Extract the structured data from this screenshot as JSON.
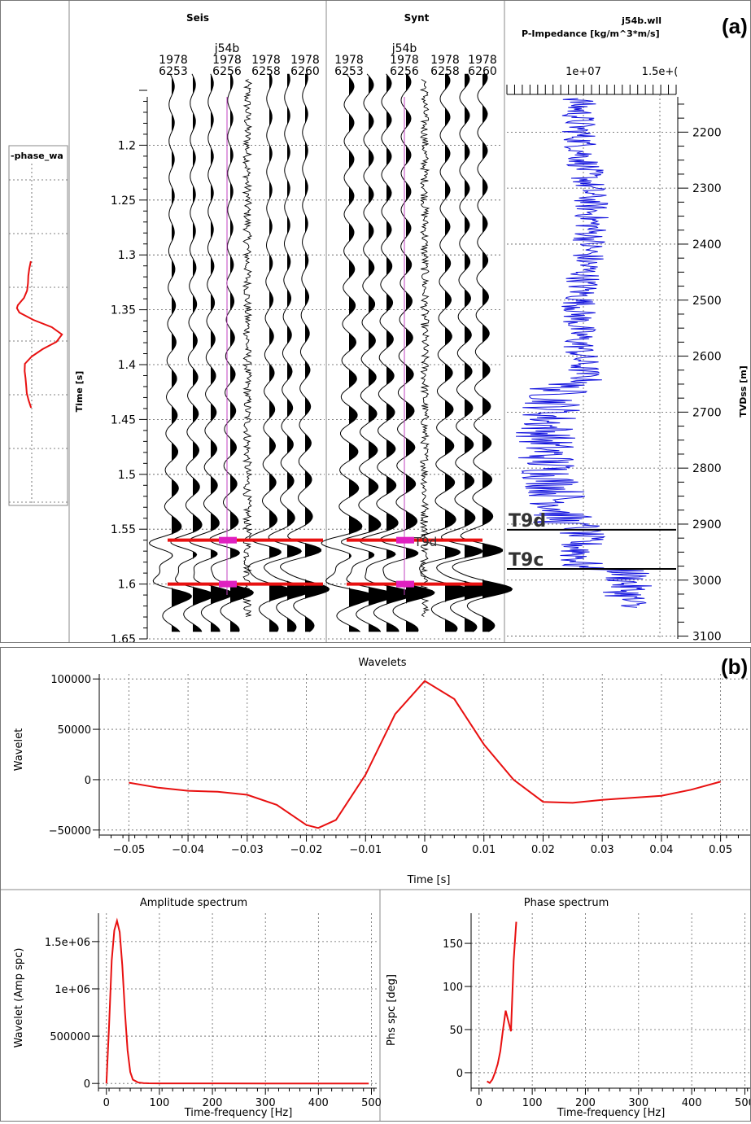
{
  "panel_a": {
    "label": "(a)",
    "wavelet_track_title": "-phase_wa",
    "seis": {
      "title": "Seis",
      "trace_headers": [
        {
          "line1": "1978",
          "line2": "6253"
        },
        {
          "line0": "j54b",
          "line1": "1978",
          "line2": "6256"
        },
        {
          "line1": "1978",
          "line2": "6258"
        },
        {
          "line1": "1978",
          "line2": "6260"
        }
      ]
    },
    "synt": {
      "title": "Synt",
      "trace_headers": [
        {
          "line1": "1978",
          "line2": "6253"
        },
        {
          "line0": "j54b",
          "line1": "1978",
          "line2": "6256"
        },
        {
          "line1": "1978",
          "line2": "6258"
        },
        {
          "line1": "1978",
          "line2": "6260"
        }
      ],
      "marker_label": "T9d"
    },
    "log": {
      "well": "j54b.wll",
      "curve": "P-Impedance [kg/m^3*m/s]",
      "x_ticks": [
        "1e+07",
        "1.5e+("
      ],
      "ylabel": "TVDss [m]"
    },
    "time_axis": {
      "label": "Time [s]",
      "ticks": [
        "1.2",
        "1.25",
        "1.3",
        "1.35",
        "1.4",
        "1.45",
        "1.5",
        "1.55",
        "1.6",
        "1.65"
      ]
    },
    "depth_axis": {
      "ticks": [
        "2200",
        "2300",
        "2400",
        "2500",
        "2600",
        "2700",
        "2800",
        "2900",
        "3000",
        "3100"
      ]
    },
    "horizons": [
      {
        "name": "T9d",
        "time": 1.56,
        "depth": 2910
      },
      {
        "name": "T9c",
        "time": 1.6,
        "depth": 2980
      }
    ],
    "colors": {
      "horizon": "#e81010",
      "marker": "#e020c0",
      "impedance": "#1010dd",
      "wiggle": "#000000"
    }
  },
  "panel_b": {
    "label": "(b)",
    "wavelet_plot": {
      "title": "Wavelets",
      "xlabel": "Time [s]",
      "ylabel": "Wavelet",
      "x_ticks": [
        "−0.05",
        "−0.04",
        "−0.03",
        "−0.02",
        "−0.01",
        "0",
        "0.01",
        "0.02",
        "0.03",
        "0.04",
        "0.05"
      ],
      "y_ticks": [
        "100000",
        "50000",
        "0",
        "−50000"
      ]
    },
    "amplitude_plot": {
      "title": "Amplitude spectrum",
      "xlabel": "Time-frequency [Hz]",
      "ylabel": "Wavelet (Amp spc)",
      "x_ticks": [
        "0",
        "100",
        "200",
        "300",
        "400",
        "500"
      ],
      "y_ticks": [
        "1.5e+06",
        "1e+06",
        "500000",
        "0"
      ]
    },
    "phase_plot": {
      "title": "Phase spectrum",
      "xlabel": "Time-frequency [Hz]",
      "ylabel": "Phs spc [deg]",
      "x_ticks": [
        "0",
        "100",
        "200",
        "300",
        "400",
        "500"
      ],
      "y_ticks": [
        "150",
        "100",
        "50",
        "0"
      ]
    }
  },
  "chart_data": [
    {
      "type": "line",
      "id": "wavelet",
      "title": "Wavelets",
      "xlabel": "Time [s]",
      "ylabel": "Wavelet",
      "xlim": [
        -0.055,
        0.055
      ],
      "ylim": [
        -55000,
        105000
      ],
      "grid": true,
      "color": "#e81010",
      "x": [
        -0.05,
        -0.045,
        -0.04,
        -0.035,
        -0.03,
        -0.025,
        -0.02,
        -0.018,
        -0.015,
        -0.01,
        -0.005,
        0,
        0.005,
        0.01,
        0.015,
        0.02,
        0.025,
        0.03,
        0.035,
        0.04,
        0.045,
        0.05
      ],
      "y": [
        -3000,
        -8000,
        -11000,
        -12000,
        -15000,
        -25000,
        -45000,
        -48000,
        -40000,
        5000,
        65000,
        98000,
        80000,
        35000,
        0,
        -22000,
        -23000,
        -20000,
        -18000,
        -16000,
        -10000,
        -2000
      ]
    },
    {
      "type": "line",
      "id": "amplitude",
      "title": "Amplitude spectrum",
      "xlabel": "Time-frequency [Hz]",
      "ylabel": "Wavelet (Amp spc)",
      "xlim": [
        -15,
        510
      ],
      "ylim": [
        -50000,
        1800000
      ],
      "grid": true,
      "color": "#e81010",
      "x": [
        0,
        5,
        10,
        15,
        20,
        25,
        30,
        35,
        40,
        45,
        50,
        60,
        70,
        80,
        100,
        200,
        300,
        400,
        495
      ],
      "y": [
        0,
        600000,
        1300000,
        1620000,
        1720000,
        1600000,
        1250000,
        750000,
        350000,
        120000,
        40000,
        10000,
        4000,
        2000,
        1000,
        500,
        300,
        200,
        100
      ]
    },
    {
      "type": "line",
      "id": "phase",
      "title": "Phase spectrum",
      "xlabel": "Time-frequency [Hz]",
      "ylabel": "Phs spc [deg]",
      "xlim": [
        -15,
        510
      ],
      "ylim": [
        -18,
        185
      ],
      "grid": true,
      "color": "#e81010",
      "x": [
        15,
        20,
        25,
        30,
        35,
        40,
        45,
        50,
        55,
        60,
        65,
        70
      ],
      "y": [
        -10,
        -12,
        -8,
        0,
        10,
        25,
        50,
        72,
        60,
        48,
        130,
        175
      ]
    }
  ]
}
